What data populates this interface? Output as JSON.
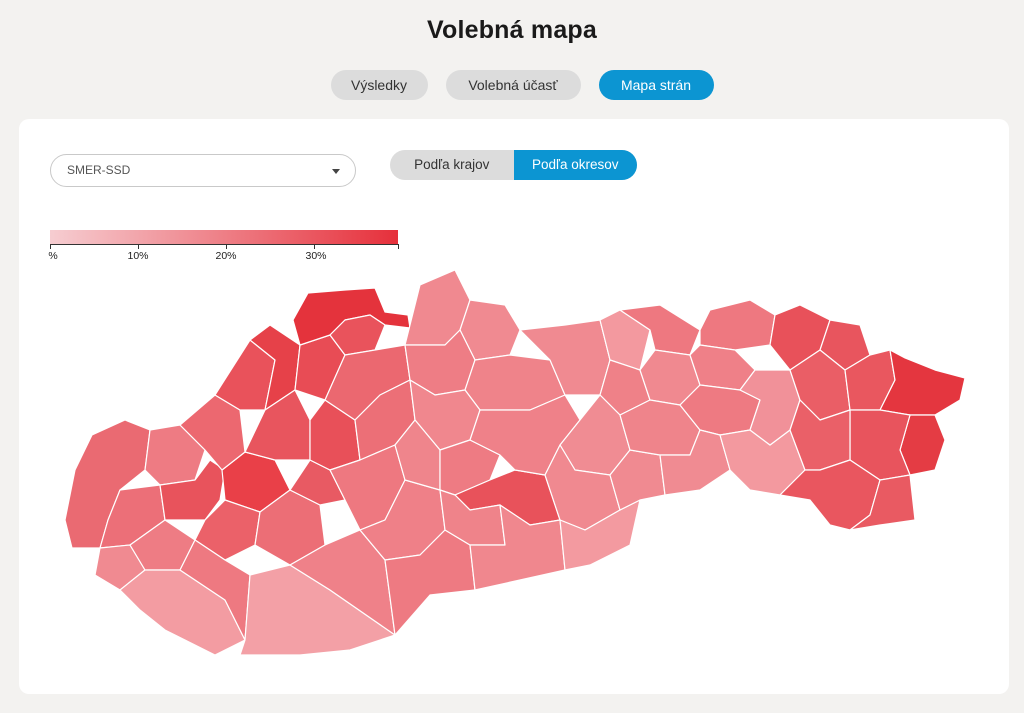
{
  "page": {
    "title": "Volebná mapa",
    "tabs": [
      {
        "label": "Výsledky",
        "active": false
      },
      {
        "label": "Volebná účasť",
        "active": false
      },
      {
        "label": "Mapa strán",
        "active": true
      }
    ]
  },
  "filters": {
    "party_select": {
      "value": "SMER-SSD"
    },
    "view_toggle": [
      {
        "label": "Podľa krajov",
        "active": false
      },
      {
        "label": "Podľa okresov",
        "active": true
      }
    ]
  },
  "legend": {
    "unit_label": "%",
    "ticks": [
      "10%",
      "20%",
      "30%"
    ],
    "tick_values": [
      10,
      20,
      30
    ],
    "max_value": 40,
    "color_low": "#f6cdd1",
    "color_high": "#e6303b"
  },
  "map": {
    "country": "Slovakia",
    "level": "districts",
    "party": "SMER-SSD",
    "border_color": "#ffffff"
  },
  "colors": {
    "accent": "#0c95d2",
    "tab_inactive": "#dcdcdc",
    "background": "#f3f2f0",
    "card": "#ffffff"
  }
}
